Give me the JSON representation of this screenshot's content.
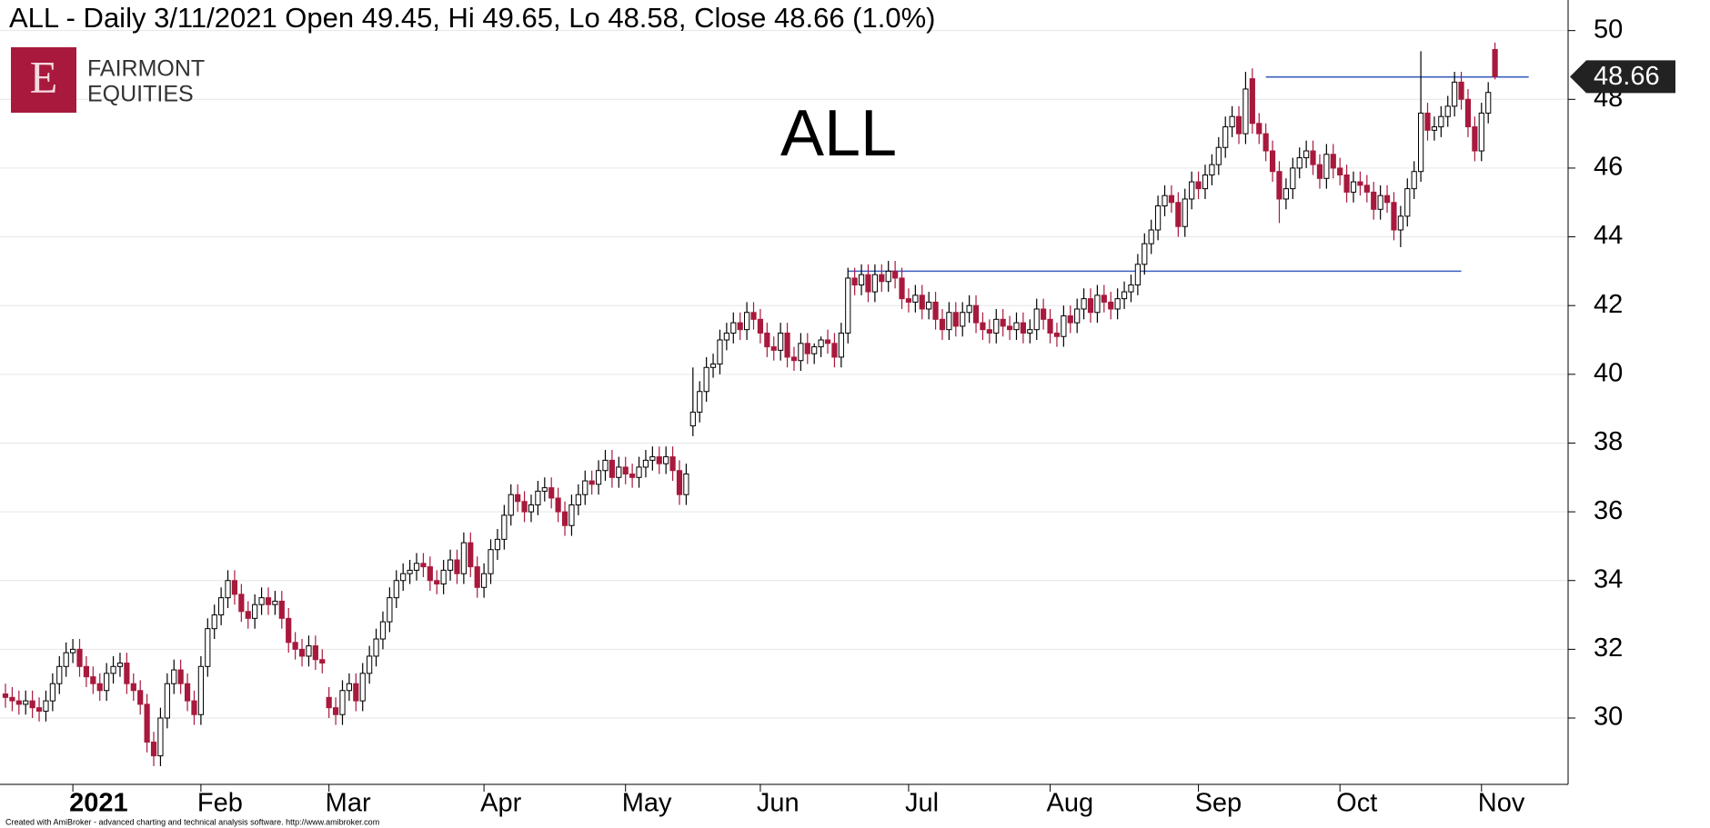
{
  "chart_data": {
    "type": "candlestick",
    "title": "ALL - Daily 3/11/2021 Open 49.45, Hi 49.65, Lo 48.58, Close 48.66 (1.0%)",
    "annotation": "ALL",
    "logo": {
      "mark": "E",
      "lines": [
        "FAIRMONT",
        "EQUITIES"
      ]
    },
    "footer": "Created with AmiBroker - advanced charting and technical analysis software. http://www.amibroker.com",
    "categories": [
      null,
      null,
      null,
      null,
      null,
      null,
      null,
      null,
      null,
      null,
      "2021",
      null,
      null,
      null,
      null,
      null,
      null,
      null,
      null,
      null,
      null,
      null,
      null,
      null,
      null,
      null,
      null,
      null,
      null,
      "Feb",
      null,
      null,
      null,
      null,
      null,
      null,
      null,
      null,
      null,
      null,
      null,
      null,
      null,
      null,
      null,
      null,
      null,
      null,
      "Mar",
      null,
      null,
      null,
      null,
      null,
      null,
      null,
      null,
      null,
      null,
      null,
      null,
      null,
      null,
      null,
      null,
      null,
      null,
      null,
      null,
      null,
      null,
      "Apr",
      null,
      null,
      null,
      null,
      null,
      null,
      null,
      null,
      null,
      null,
      null,
      null,
      null,
      null,
      null,
      null,
      null,
      null,
      null,
      null,
      "May",
      null,
      null,
      null,
      null,
      null,
      null,
      null,
      null,
      null,
      null,
      null,
      null,
      null,
      null,
      null,
      null,
      null,
      null,
      null,
      "Jun",
      null,
      null,
      null,
      null,
      null,
      null,
      null,
      null,
      null,
      null,
      null,
      null,
      null,
      null,
      null,
      null,
      null,
      null,
      null,
      null,
      null,
      "Jul",
      null,
      null,
      null,
      null,
      null,
      null,
      null,
      null,
      null,
      null,
      null,
      null,
      null,
      null,
      null,
      null,
      null,
      null,
      null,
      null,
      "Aug",
      null,
      null,
      null,
      null,
      null,
      null,
      null,
      null,
      null,
      null,
      null,
      null,
      null,
      null,
      null,
      null,
      null,
      null,
      null,
      null,
      null,
      "Sep",
      null,
      null,
      null,
      null,
      null,
      null,
      null,
      null,
      null,
      null,
      null,
      null,
      null,
      null,
      null,
      null,
      null,
      null,
      null,
      null,
      "Oct",
      null,
      null,
      null,
      null,
      null,
      null,
      null,
      null,
      null,
      null,
      null,
      null,
      null,
      null,
      null,
      null,
      null,
      null,
      null,
      null,
      "Nov",
      null,
      null
    ],
    "open": [
      30.7,
      30.6,
      30.5,
      30.4,
      30.5,
      30.3,
      30.2,
      30.5,
      31.0,
      31.5,
      31.9,
      32.0,
      31.5,
      31.2,
      31.0,
      30.8,
      31.3,
      31.5,
      31.6,
      31.0,
      30.8,
      30.4,
      29.3,
      28.9,
      30.0,
      31.0,
      31.4,
      31.0,
      30.5,
      30.1,
      31.5,
      32.6,
      33.0,
      33.5,
      34.0,
      33.6,
      33.1,
      32.9,
      33.3,
      33.5,
      33.3,
      33.4,
      32.9,
      32.2,
      32.0,
      31.8,
      32.1,
      31.7,
      30.6,
      30.3,
      30.1,
      30.8,
      31.0,
      30.5,
      31.3,
      31.8,
      32.3,
      32.8,
      33.5,
      34.0,
      34.2,
      34.3,
      34.5,
      34.4,
      34.0,
      33.9,
      34.3,
      34.6,
      34.2,
      35.1,
      34.4,
      33.8,
      34.2,
      34.9,
      35.2,
      35.9,
      36.5,
      36.3,
      36.0,
      36.2,
      36.6,
      36.7,
      36.4,
      36.0,
      35.6,
      36.2,
      36.5,
      36.9,
      36.8,
      37.2,
      37.5,
      37.0,
      37.3,
      37.1,
      37.0,
      37.3,
      37.5,
      37.6,
      37.4,
      37.6,
      37.2,
      36.5,
      38.5,
      38.9,
      39.5,
      40.2,
      40.3,
      41.0,
      41.2,
      41.5,
      41.3,
      41.8,
      41.6,
      41.2,
      40.8,
      40.7,
      41.2,
      40.5,
      40.4,
      40.9,
      40.6,
      40.8,
      41.0,
      40.9,
      40.5,
      41.2,
      42.8,
      42.6,
      42.9,
      42.4,
      42.9,
      42.7,
      43.0,
      42.8,
      42.2,
      42.1,
      42.3,
      41.9,
      42.1,
      41.6,
      41.3,
      41.8,
      41.4,
      41.8,
      42.0,
      41.5,
      41.3,
      41.2,
      41.6,
      41.4,
      41.3,
      41.5,
      41.2,
      41.3,
      41.9,
      41.6,
      41.2,
      41.1,
      41.7,
      41.5,
      41.9,
      42.2,
      41.8,
      42.3,
      42.1,
      41.9,
      42.2,
      42.4,
      42.6,
      43.2,
      43.8,
      44.2,
      44.9,
      45.2,
      45.0,
      44.3,
      45.1,
      45.6,
      45.4,
      45.8,
      46.1,
      46.6,
      47.2,
      47.5,
      47.0,
      48.6,
      47.3,
      47.0,
      46.5,
      45.9,
      45.1,
      45.4,
      46.0,
      46.3,
      46.5,
      46.1,
      45.7,
      46.4,
      46.0,
      45.8,
      45.3,
      45.6,
      45.5,
      45.3,
      44.8,
      45.2,
      45.0,
      44.2,
      44.6,
      45.4,
      45.9,
      47.6,
      47.1,
      47.2,
      47.5,
      47.8,
      48.5,
      48.0,
      47.2,
      46.5,
      47.6,
      49.45
    ],
    "high": [
      31.0,
      30.9,
      30.8,
      30.8,
      30.8,
      30.6,
      30.8,
      31.3,
      31.8,
      32.2,
      32.3,
      32.3,
      31.8,
      31.5,
      31.3,
      31.6,
      31.8,
      31.9,
      31.9,
      31.3,
      31.1,
      30.7,
      29.6,
      30.3,
      31.3,
      31.7,
      31.7,
      31.3,
      30.8,
      31.8,
      32.9,
      33.3,
      33.8,
      34.3,
      34.3,
      33.9,
      33.4,
      33.6,
      33.8,
      33.8,
      33.7,
      33.7,
      33.2,
      32.5,
      32.3,
      32.4,
      32.4,
      32.0,
      30.9,
      30.6,
      31.1,
      31.3,
      31.3,
      31.6,
      32.1,
      32.6,
      33.1,
      33.8,
      34.3,
      34.5,
      34.6,
      34.8,
      34.8,
      34.7,
      34.3,
      34.6,
      34.9,
      34.9,
      35.4,
      35.4,
      34.7,
      34.5,
      35.2,
      35.5,
      36.2,
      36.8,
      36.8,
      36.6,
      36.5,
      36.9,
      37.0,
      37.0,
      36.7,
      36.3,
      36.5,
      36.8,
      37.2,
      37.2,
      37.5,
      37.8,
      37.8,
      37.6,
      37.6,
      37.4,
      37.6,
      37.8,
      37.9,
      37.9,
      37.9,
      37.9,
      37.5,
      37.4,
      40.2,
      39.8,
      40.5,
      40.6,
      41.3,
      41.5,
      41.8,
      41.8,
      42.1,
      42.1,
      41.9,
      41.5,
      41.1,
      41.5,
      41.5,
      40.8,
      41.2,
      41.2,
      40.9,
      41.1,
      41.3,
      41.2,
      41.5,
      43.1,
      43.1,
      43.2,
      43.2,
      43.2,
      43.2,
      43.3,
      43.3,
      43.1,
      42.5,
      42.6,
      42.6,
      42.4,
      42.4,
      41.9,
      42.1,
      42.1,
      42.1,
      42.3,
      42.3,
      41.8,
      41.6,
      41.9,
      41.9,
      41.7,
      41.8,
      41.8,
      41.6,
      42.2,
      42.2,
      41.9,
      41.5,
      42.0,
      42.0,
      42.2,
      42.5,
      42.5,
      42.6,
      42.6,
      42.4,
      42.5,
      42.7,
      42.9,
      43.5,
      44.1,
      44.5,
      45.2,
      45.5,
      45.5,
      45.3,
      45.4,
      45.9,
      45.9,
      46.1,
      46.4,
      46.9,
      47.5,
      47.8,
      47.8,
      48.8,
      48.9,
      47.6,
      47.3,
      46.8,
      46.2,
      45.7,
      46.3,
      46.6,
      46.8,
      46.8,
      46.4,
      46.7,
      46.7,
      46.3,
      46.1,
      45.9,
      45.9,
      45.8,
      45.6,
      45.5,
      45.5,
      45.3,
      44.9,
      45.7,
      46.2,
      49.4,
      47.9,
      47.5,
      47.8,
      48.1,
      48.8,
      48.8,
      48.3,
      47.5,
      47.9,
      48.5,
      49.65
    ],
    "low": [
      30.3,
      30.2,
      30.1,
      30.1,
      30.0,
      29.9,
      29.9,
      30.2,
      30.7,
      31.2,
      31.6,
      31.2,
      30.9,
      30.7,
      30.5,
      30.5,
      31.0,
      31.2,
      30.7,
      30.5,
      30.1,
      29.0,
      28.6,
      28.6,
      29.7,
      30.7,
      30.7,
      30.2,
      29.8,
      29.8,
      31.2,
      32.3,
      32.7,
      33.2,
      33.3,
      32.8,
      32.6,
      32.6,
      33.0,
      33.0,
      33.0,
      32.6,
      31.9,
      31.7,
      31.5,
      31.5,
      31.4,
      31.3,
      30.0,
      29.8,
      29.8,
      30.5,
      30.2,
      30.2,
      31.0,
      31.5,
      32.0,
      32.5,
      33.2,
      33.7,
      33.9,
      34.0,
      34.1,
      33.7,
      33.6,
      33.6,
      34.0,
      33.9,
      33.9,
      34.1,
      33.5,
      33.5,
      33.9,
      34.6,
      34.9,
      35.6,
      36.0,
      35.7,
      35.7,
      35.9,
      36.3,
      36.1,
      35.7,
      35.3,
      35.3,
      35.9,
      36.2,
      36.5,
      36.5,
      36.9,
      36.7,
      36.7,
      36.8,
      36.7,
      36.7,
      37.0,
      37.2,
      37.1,
      37.1,
      36.9,
      36.2,
      36.2,
      38.2,
      38.6,
      39.2,
      39.9,
      40.0,
      40.7,
      40.9,
      41.0,
      41.0,
      41.3,
      40.9,
      40.5,
      40.4,
      40.4,
      40.2,
      40.1,
      40.1,
      40.3,
      40.3,
      40.5,
      40.6,
      40.2,
      40.2,
      40.9,
      42.3,
      42.3,
      42.1,
      42.1,
      42.4,
      42.4,
      42.5,
      41.9,
      41.8,
      41.8,
      41.6,
      41.6,
      41.3,
      41.0,
      41.0,
      41.1,
      41.1,
      41.5,
      41.2,
      41.0,
      40.9,
      40.9,
      41.1,
      41.0,
      41.0,
      40.9,
      40.9,
      41.0,
      41.3,
      40.9,
      40.8,
      40.8,
      41.2,
      41.2,
      41.6,
      41.5,
      41.5,
      41.8,
      41.6,
      41.6,
      41.9,
      42.1,
      42.3,
      42.9,
      43.5,
      43.9,
      44.6,
      44.7,
      44.0,
      44.0,
      44.8,
      45.1,
      45.1,
      45.5,
      45.8,
      46.3,
      46.9,
      46.7,
      46.7,
      47.0,
      46.7,
      46.2,
      45.6,
      44.4,
      44.8,
      45.1,
      45.7,
      46.0,
      45.8,
      45.4,
      45.4,
      45.7,
      45.5,
      45.0,
      45.0,
      45.2,
      45.0,
      44.5,
      44.5,
      44.7,
      43.9,
      43.7,
      44.3,
      45.1,
      45.6,
      46.8,
      46.8,
      46.9,
      47.2,
      47.5,
      47.7,
      46.9,
      46.2,
      46.2,
      47.3,
      48.58
    ],
    "close": [
      30.6,
      30.5,
      30.4,
      30.5,
      30.3,
      30.2,
      30.5,
      31.0,
      31.5,
      31.9,
      32.0,
      31.5,
      31.2,
      31.0,
      30.8,
      31.3,
      31.5,
      31.6,
      31.0,
      30.8,
      30.4,
      29.3,
      28.9,
      30.0,
      31.0,
      31.4,
      31.0,
      30.5,
      30.1,
      31.5,
      32.6,
      33.0,
      33.5,
      34.0,
      33.6,
      33.1,
      32.9,
      33.3,
      33.5,
      33.3,
      33.4,
      32.9,
      32.2,
      32.0,
      31.8,
      32.1,
      31.7,
      31.6,
      30.3,
      30.1,
      30.8,
      31.0,
      30.5,
      31.3,
      31.8,
      32.3,
      32.8,
      33.5,
      34.0,
      34.2,
      34.3,
      34.5,
      34.4,
      34.0,
      33.9,
      34.3,
      34.6,
      34.2,
      35.1,
      34.4,
      33.8,
      34.2,
      34.9,
      35.2,
      35.9,
      36.5,
      36.3,
      36.0,
      36.2,
      36.6,
      36.7,
      36.4,
      36.0,
      35.6,
      36.2,
      36.5,
      36.9,
      36.8,
      37.2,
      37.5,
      37.0,
      37.3,
      37.1,
      37.0,
      37.3,
      37.5,
      37.6,
      37.4,
      37.6,
      37.2,
      36.5,
      37.1,
      38.9,
      39.5,
      40.2,
      40.3,
      41.0,
      41.2,
      41.5,
      41.3,
      41.8,
      41.6,
      41.2,
      40.8,
      40.7,
      41.2,
      40.5,
      40.4,
      40.9,
      40.6,
      40.8,
      41.0,
      40.9,
      40.5,
      41.2,
      42.8,
      42.6,
      42.9,
      42.4,
      42.9,
      42.7,
      43.0,
      42.8,
      42.2,
      42.1,
      42.3,
      41.9,
      42.1,
      41.6,
      41.3,
      41.8,
      41.4,
      41.8,
      42.0,
      41.5,
      41.3,
      41.2,
      41.6,
      41.4,
      41.3,
      41.5,
      41.2,
      41.3,
      41.9,
      41.6,
      41.2,
      41.1,
      41.7,
      41.5,
      41.9,
      42.2,
      41.8,
      42.3,
      42.1,
      41.9,
      42.2,
      42.4,
      42.6,
      43.2,
      43.8,
      44.2,
      44.9,
      45.2,
      45.0,
      44.3,
      45.1,
      45.6,
      45.4,
      45.8,
      46.1,
      46.6,
      47.2,
      47.5,
      47.0,
      48.3,
      47.3,
      47.0,
      46.5,
      45.9,
      45.1,
      45.4,
      46.0,
      46.3,
      46.5,
      46.1,
      45.7,
      46.4,
      46.0,
      45.8,
      45.3,
      45.6,
      45.5,
      45.3,
      44.8,
      45.2,
      45.0,
      44.2,
      44.6,
      45.4,
      45.9,
      47.6,
      47.1,
      47.2,
      47.5,
      47.8,
      48.5,
      48.0,
      47.2,
      46.5,
      47.6,
      48.2,
      48.66
    ],
    "up_color": "#ffffff",
    "down_color": "#a8193d",
    "ylim": [
      28.07,
      50.89
    ],
    "yticks": [
      30,
      32,
      34,
      36,
      38,
      40,
      42,
      44,
      46,
      48,
      50
    ],
    "grid": true,
    "hline_color": "#3b5fc0",
    "hlines": [
      {
        "value": 43.0,
        "from": 125,
        "to": 216
      },
      {
        "value": 48.65,
        "from": 187,
        "to": 226
      }
    ]
  }
}
